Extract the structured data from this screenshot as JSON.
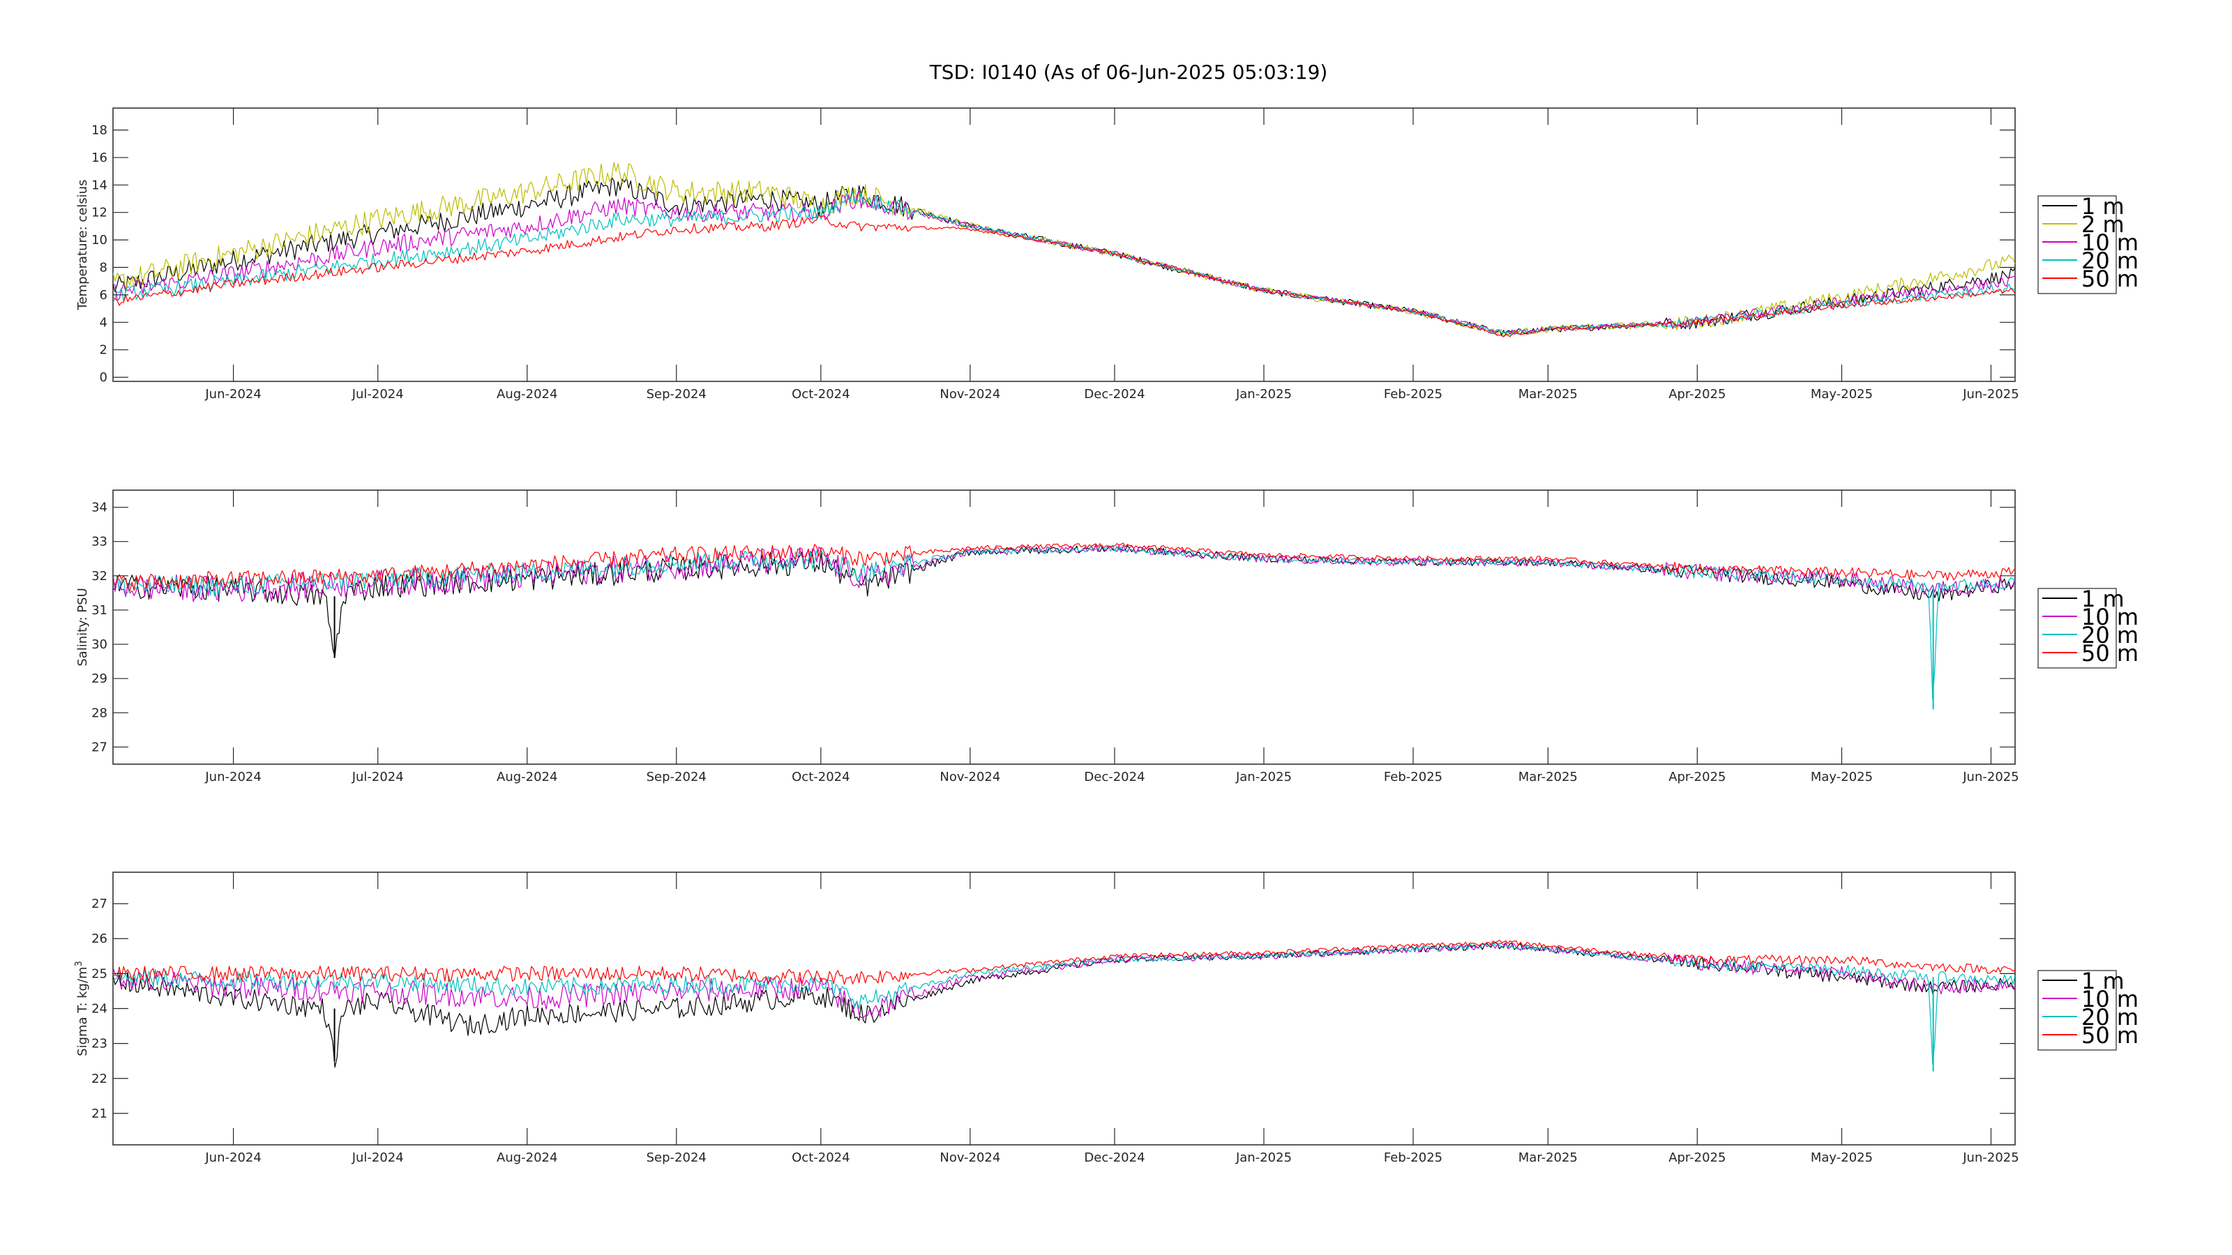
{
  "figure": {
    "title": "TSD: I0140 (As of 06-Jun-2025 05:03:19)"
  },
  "colors": {
    "1 m": "#000000",
    "2 m": "#bdbd00",
    "10 m": "#cc00cc",
    "20 m": "#00bfbf",
    "50 m": "#ff0000"
  },
  "chart_data": [
    {
      "type": "line",
      "title": "TSD: I0140 (As of 06-Jun-2025 05:03:19)",
      "xlabel": "",
      "ylabel": "Temperature:  celsius",
      "xlim": [
        "2024-05-07",
        "2025-06-06"
      ],
      "ylim": [
        -0.3,
        19.6
      ],
      "yticks": [
        0,
        2,
        4,
        6,
        8,
        10,
        12,
        14,
        16,
        18
      ],
      "xtick_labels": [
        "Jun-2024",
        "Jul-2024",
        "Aug-2024",
        "Sep-2024",
        "Oct-2024",
        "Nov-2024",
        "Dec-2024",
        "Jan-2025",
        "Feb-2025",
        "Mar-2025",
        "Apr-2025",
        "May-2025",
        "Jun-2025"
      ],
      "xtick_dates": [
        "2024-06-01",
        "2024-07-01",
        "2024-08-01",
        "2024-09-01",
        "2024-10-01",
        "2024-11-01",
        "2024-12-01",
        "2025-01-01",
        "2025-02-01",
        "2025-03-01",
        "2025-04-01",
        "2025-05-01",
        "2025-06-01"
      ],
      "legend_position": "outside-right",
      "grid": false,
      "series": [
        {
          "name": "1 m",
          "x": [
            "2024-05-07",
            "2024-06-01",
            "2024-07-01",
            "2024-08-01",
            "2024-08-20",
            "2024-09-01",
            "2024-09-20",
            "2024-10-01",
            "2024-10-08",
            "2024-11-01",
            "2024-12-01",
            "2025-01-01",
            "2025-02-01",
            "2025-02-20",
            "2025-03-01",
            "2025-04-01",
            "2025-05-01",
            "2025-06-06"
          ],
          "y": [
            6.5,
            8.5,
            10.5,
            12.5,
            14,
            12.5,
            13,
            12.5,
            13.5,
            11,
            9,
            6.3,
            4.8,
            3.2,
            3.5,
            4,
            5.5,
            7.5
          ]
        },
        {
          "name": "2 m",
          "x": [
            "2024-05-07",
            "2024-06-01",
            "2024-07-01",
            "2024-08-01",
            "2024-08-20",
            "2024-09-01",
            "2024-09-20",
            "2024-10-01",
            "2024-10-08",
            "2024-11-01",
            "2024-12-01",
            "2025-01-01",
            "2025-02-01",
            "2025-02-20",
            "2025-03-01",
            "2025-04-01",
            "2025-05-01",
            "2025-06-06"
          ],
          "y": [
            6.8,
            9,
            11.5,
            13.5,
            15,
            13.5,
            13.5,
            12.5,
            13.5,
            11,
            9,
            6.3,
            4.8,
            3.2,
            3.5,
            4,
            5.8,
            8.5
          ]
        },
        {
          "name": "10 m",
          "x": [
            "2024-05-07",
            "2024-06-01",
            "2024-07-01",
            "2024-08-01",
            "2024-08-20",
            "2024-09-01",
            "2024-09-20",
            "2024-10-01",
            "2024-10-08",
            "2024-11-01",
            "2024-12-01",
            "2025-01-01",
            "2025-02-01",
            "2025-02-20",
            "2025-03-01",
            "2025-04-01",
            "2025-05-01",
            "2025-06-06"
          ],
          "y": [
            6.2,
            7.5,
            9.5,
            11,
            12.5,
            12,
            12,
            12,
            13,
            11,
            9,
            6.3,
            4.8,
            3.2,
            3.5,
            4,
            5.5,
            7
          ]
        },
        {
          "name": "20 m",
          "x": [
            "2024-05-07",
            "2024-06-01",
            "2024-07-01",
            "2024-08-01",
            "2024-08-20",
            "2024-09-01",
            "2024-09-20",
            "2024-10-01",
            "2024-10-08",
            "2024-11-01",
            "2024-12-01",
            "2025-01-01",
            "2025-02-01",
            "2025-02-20",
            "2025-03-01",
            "2025-04-01",
            "2025-05-01",
            "2025-06-06"
          ],
          "y": [
            6,
            7,
            8.5,
            10,
            11.5,
            11.5,
            11.8,
            12,
            13.2,
            11,
            9,
            6.3,
            4.8,
            3.2,
            3.5,
            4,
            5.3,
            6.5
          ]
        },
        {
          "name": "50 m",
          "x": [
            "2024-05-07",
            "2024-06-01",
            "2024-07-01",
            "2024-08-01",
            "2024-08-20",
            "2024-09-01",
            "2024-09-20",
            "2024-10-01",
            "2024-10-08",
            "2024-11-01",
            "2024-12-01",
            "2025-01-01",
            "2025-02-01",
            "2025-02-20",
            "2025-03-01",
            "2025-04-01",
            "2025-05-01",
            "2025-06-06"
          ],
          "y": [
            5.5,
            6.8,
            8,
            9.2,
            10.2,
            10.8,
            11,
            11.5,
            11,
            10.8,
            9,
            6.3,
            4.8,
            3,
            3.5,
            4,
            5.2,
            6.3
          ]
        }
      ]
    },
    {
      "type": "line",
      "xlabel": "",
      "ylabel": "Salinity:  PSU",
      "xlim": [
        "2024-05-07",
        "2025-06-06"
      ],
      "ylim": [
        26.5,
        34.5
      ],
      "yticks": [
        27,
        28,
        29,
        30,
        31,
        32,
        33,
        34
      ],
      "xtick_labels": [
        "Jun-2024",
        "Jul-2024",
        "Aug-2024",
        "Sep-2024",
        "Oct-2024",
        "Nov-2024",
        "Dec-2024",
        "Jan-2025",
        "Feb-2025",
        "Mar-2025",
        "Apr-2025",
        "May-2025",
        "Jun-2025"
      ],
      "xtick_dates": [
        "2024-06-01",
        "2024-07-01",
        "2024-08-01",
        "2024-09-01",
        "2024-10-01",
        "2024-11-01",
        "2024-12-01",
        "2025-01-01",
        "2025-02-01",
        "2025-03-01",
        "2025-04-01",
        "2025-05-01",
        "2025-06-01"
      ],
      "legend_position": "outside-right",
      "grid": false,
      "series": [
        {
          "name": "1 m",
          "x": [
            "2024-05-07",
            "2024-06-01",
            "2024-06-20",
            "2024-06-22",
            "2024-06-24",
            "2024-07-01",
            "2024-08-01",
            "2024-09-01",
            "2024-10-01",
            "2024-10-10",
            "2024-11-01",
            "2024-12-01",
            "2025-01-01",
            "2025-02-01",
            "2025-03-01",
            "2025-04-01",
            "2025-05-01",
            "2025-05-20",
            "2025-06-06"
          ],
          "y": [
            31.7,
            31.6,
            31.4,
            29.6,
            31.5,
            31.7,
            31.9,
            32.2,
            32.4,
            31.7,
            32.7,
            32.8,
            32.5,
            32.4,
            32.4,
            32.1,
            31.8,
            31.4,
            31.8
          ]
        },
        {
          "name": "10 m",
          "x": [
            "2024-05-07",
            "2024-06-01",
            "2024-07-01",
            "2024-08-01",
            "2024-09-01",
            "2024-10-01",
            "2024-10-10",
            "2024-11-01",
            "2024-12-01",
            "2025-01-01",
            "2025-02-01",
            "2025-03-01",
            "2025-04-01",
            "2025-05-01",
            "2025-05-20",
            "2025-06-06"
          ],
          "y": [
            31.7,
            31.6,
            31.8,
            32,
            32.3,
            32.5,
            31.9,
            32.7,
            32.8,
            32.5,
            32.4,
            32.4,
            32.1,
            31.9,
            31.6,
            31.8
          ]
        },
        {
          "name": "20 m",
          "x": [
            "2024-05-07",
            "2024-06-01",
            "2024-07-01",
            "2024-08-01",
            "2024-09-01",
            "2024-10-01",
            "2024-10-10",
            "2024-11-01",
            "2024-12-01",
            "2025-01-01",
            "2025-02-01",
            "2025-03-01",
            "2025-04-01",
            "2025-05-01",
            "2025-05-19",
            "2025-05-20",
            "2025-05-21",
            "2025-06-06"
          ],
          "y": [
            31.7,
            31.7,
            31.9,
            32.1,
            32.4,
            32.5,
            32.1,
            32.7,
            32.8,
            32.5,
            32.4,
            32.4,
            32.1,
            31.9,
            31.7,
            28.1,
            31.7,
            31.8
          ]
        },
        {
          "name": "50 m",
          "x": [
            "2024-05-07",
            "2024-06-01",
            "2024-07-01",
            "2024-08-01",
            "2024-09-01",
            "2024-10-01",
            "2024-10-10",
            "2024-11-01",
            "2024-12-01",
            "2025-01-01",
            "2025-02-01",
            "2025-03-01",
            "2025-04-01",
            "2025-05-01",
            "2025-05-20",
            "2025-06-06"
          ],
          "y": [
            31.8,
            31.9,
            32,
            32.3,
            32.6,
            32.7,
            32.5,
            32.8,
            32.9,
            32.6,
            32.5,
            32.5,
            32.2,
            32.1,
            32,
            32.1
          ]
        }
      ]
    },
    {
      "type": "line",
      "xlabel": "",
      "ylabel": "Sigma T:  kg/m",
      "ylabel_superscript": "3",
      "xlim": [
        "2024-05-07",
        "2025-06-06"
      ],
      "ylim": [
        20.1,
        27.9
      ],
      "yticks": [
        21,
        22,
        23,
        24,
        25,
        26,
        27
      ],
      "xtick_labels": [
        "Jun-2024",
        "Jul-2024",
        "Aug-2024",
        "Sep-2024",
        "Oct-2024",
        "Nov-2024",
        "Dec-2024",
        "Jan-2025",
        "Feb-2025",
        "Mar-2025",
        "Apr-2025",
        "May-2025",
        "Jun-2025"
      ],
      "xtick_dates": [
        "2024-06-01",
        "2024-07-01",
        "2024-08-01",
        "2024-09-01",
        "2024-10-01",
        "2024-11-01",
        "2024-12-01",
        "2025-01-01",
        "2025-02-01",
        "2025-03-01",
        "2025-04-01",
        "2025-05-01",
        "2025-06-01"
      ],
      "legend_position": "outside-right",
      "grid": false,
      "series": [
        {
          "name": "1 m",
          "x": [
            "2024-05-07",
            "2024-06-01",
            "2024-06-20",
            "2024-06-22",
            "2024-06-24",
            "2024-07-01",
            "2024-07-20",
            "2024-08-01",
            "2024-09-01",
            "2024-10-01",
            "2024-10-10",
            "2024-11-01",
            "2024-12-01",
            "2025-01-01",
            "2025-02-01",
            "2025-02-20",
            "2025-03-01",
            "2025-04-01",
            "2025-05-01",
            "2025-05-20",
            "2025-06-06"
          ],
          "y": [
            24.8,
            24.3,
            24,
            22.5,
            24,
            24.2,
            23.5,
            23.8,
            24,
            24.4,
            23.8,
            24.8,
            25.4,
            25.5,
            25.7,
            25.8,
            25.7,
            25.3,
            24.9,
            24.6,
            24.7
          ]
        },
        {
          "name": "10 m",
          "x": [
            "2024-05-07",
            "2024-06-01",
            "2024-07-01",
            "2024-08-01",
            "2024-09-01",
            "2024-10-01",
            "2024-10-10",
            "2024-11-01",
            "2024-12-01",
            "2025-01-01",
            "2025-02-01",
            "2025-02-20",
            "2025-03-01",
            "2025-04-01",
            "2025-05-01",
            "2025-05-20",
            "2025-06-06"
          ],
          "y": [
            24.9,
            24.6,
            24.5,
            24.3,
            24.5,
            24.6,
            23.9,
            24.9,
            25.4,
            25.5,
            25.7,
            25.8,
            25.7,
            25.3,
            25,
            24.6,
            24.7
          ]
        },
        {
          "name": "20 m",
          "x": [
            "2024-05-07",
            "2024-06-01",
            "2024-07-01",
            "2024-08-01",
            "2024-09-01",
            "2024-10-01",
            "2024-10-10",
            "2024-11-01",
            "2024-12-01",
            "2025-01-01",
            "2025-02-01",
            "2025-02-20",
            "2025-03-01",
            "2025-04-01",
            "2025-05-01",
            "2025-05-19",
            "2025-05-20",
            "2025-05-21",
            "2025-06-06"
          ],
          "y": [
            24.9,
            24.8,
            24.8,
            24.6,
            24.7,
            24.7,
            24.2,
            25,
            25.4,
            25.5,
            25.7,
            25.8,
            25.7,
            25.3,
            25.1,
            24.9,
            22.2,
            24.9,
            24.8
          ]
        },
        {
          "name": "50 m",
          "x": [
            "2024-05-07",
            "2024-06-01",
            "2024-07-01",
            "2024-08-01",
            "2024-09-01",
            "2024-10-01",
            "2024-10-10",
            "2024-11-01",
            "2024-12-01",
            "2025-01-01",
            "2025-02-01",
            "2025-02-20",
            "2025-03-01",
            "2025-04-01",
            "2025-05-01",
            "2025-05-20",
            "2025-06-06"
          ],
          "y": [
            25,
            25,
            25,
            25,
            25,
            24.9,
            24.9,
            25.1,
            25.5,
            25.6,
            25.8,
            25.9,
            25.8,
            25.4,
            25.4,
            25.2,
            25.1
          ]
        }
      ]
    }
  ]
}
